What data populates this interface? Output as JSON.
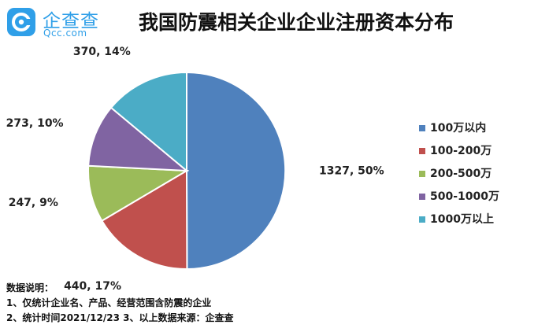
{
  "logo": {
    "name_cn": "企查查",
    "name_en": "Qcc.com",
    "icon": "qcc-logo-icon",
    "color": "#2f9fe8"
  },
  "chart_data": {
    "type": "pie",
    "title": "我国防震相关企业企业注册资本分布",
    "categories": [
      "100万以内",
      "100-200万",
      "200-500万",
      "500-1000万",
      "1000万以上"
    ],
    "values": [
      1327,
      440,
      247,
      273,
      370
    ],
    "percents": [
      50,
      17,
      9,
      10,
      14
    ],
    "data_labels": [
      "1327, 50%",
      "440, 17%",
      "247, 9%",
      "273, 10%",
      "370, 14%"
    ],
    "colors": [
      "#4f81bd",
      "#c0504d",
      "#9bbb59",
      "#8064a2",
      "#4bacc6"
    ],
    "legend_position": "right",
    "start_angle": "12 o'clock",
    "direction": "clockwise"
  },
  "notes": {
    "heading": "数据说明：",
    "lines": [
      "1、仅统计企业名、产品、经营范围含防震的企业",
      "2、统计时间2021/12/23    3、以上数据来源：企查查"
    ]
  }
}
